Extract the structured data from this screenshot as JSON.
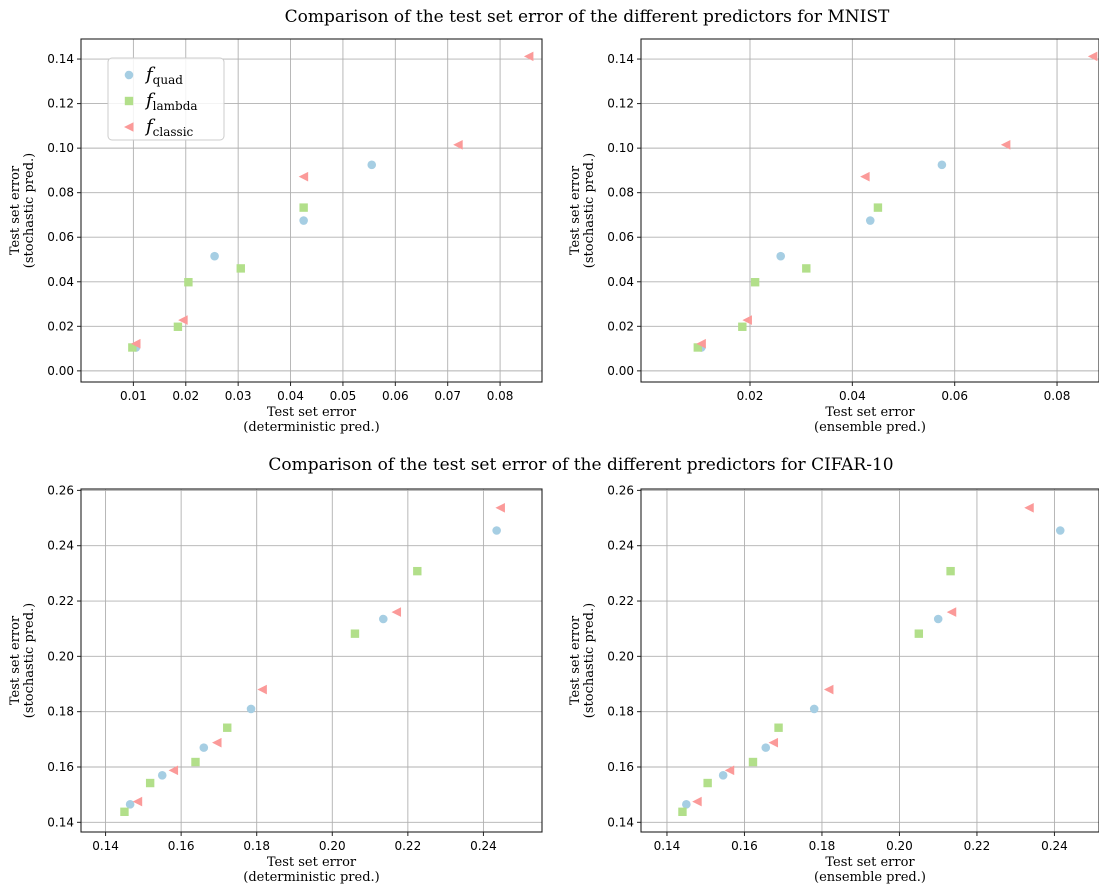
{
  "figure_titles": [
    "Comparison of the test set error of the different predictors for MNIST",
    "Comparison of the test set error of the different predictors for CIFAR-10"
  ],
  "legend": [
    {
      "base": "f",
      "sub": "quad",
      "color": "#a6cee3",
      "marker": "circle"
    },
    {
      "base": "f",
      "sub": "lambda",
      "color": "#b2df8a",
      "marker": "square"
    },
    {
      "base": "f",
      "sub": "classic",
      "color": "#fb9a99",
      "marker": "triangle-left"
    }
  ],
  "chart_data": [
    {
      "type": "scatter",
      "dataset": "MNIST",
      "xlabel": [
        "Test set error",
        "(deterministic pred.)"
      ],
      "ylabel": [
        "Test set error",
        "(stochastic pred.)"
      ],
      "xlim": [
        0.0,
        0.088
      ],
      "ylim": [
        -0.005,
        0.149
      ],
      "xticks": [
        0.01,
        0.02,
        0.03,
        0.04,
        0.05,
        0.06,
        0.07,
        0.08
      ],
      "xtick_labels": [
        "0.01",
        "0.02",
        "0.03",
        "0.04",
        "0.05",
        "0.06",
        "0.07",
        "0.08"
      ],
      "yticks": [
        0.0,
        0.02,
        0.04,
        0.06,
        0.08,
        0.1,
        0.12,
        0.14
      ],
      "ytick_labels": [
        "0.00",
        "0.02",
        "0.04",
        "0.06",
        "0.08",
        "0.10",
        "0.12",
        "0.14"
      ],
      "grid": true,
      "legend_position": "top-left",
      "series": [
        {
          "name": "f_quad",
          "x": [
            0.0105,
            0.0255,
            0.0425,
            0.0555
          ],
          "y": [
            0.0105,
            0.0515,
            0.0675,
            0.0925
          ]
        },
        {
          "name": "f_lambda",
          "x": [
            0.0098,
            0.0185,
            0.0205,
            0.0305,
            0.0425
          ],
          "y": [
            0.0105,
            0.0198,
            0.0398,
            0.046,
            0.0733
          ]
        },
        {
          "name": "f_classic",
          "x": [
            0.0105,
            0.0195,
            0.0425,
            0.072,
            0.0855
          ],
          "y": [
            0.0122,
            0.0228,
            0.0872,
            0.1015,
            0.1412
          ]
        }
      ]
    },
    {
      "type": "scatter",
      "dataset": "MNIST",
      "xlabel": [
        "Test set error",
        "(ensemble pred.)"
      ],
      "ylabel": [
        "Test set error",
        "(stochastic pred.)"
      ],
      "xlim": [
        -0.0013,
        0.0882
      ],
      "ylim": [
        -0.005,
        0.149
      ],
      "xticks": [
        0.02,
        0.04,
        0.06,
        0.08
      ],
      "xtick_labels": [
        "0.02",
        "0.04",
        "0.06",
        "0.08"
      ],
      "yticks": [
        0.0,
        0.02,
        0.04,
        0.06,
        0.08,
        0.1,
        0.12,
        0.14
      ],
      "ytick_labels": [
        "0.00",
        "0.02",
        "0.04",
        "0.06",
        "0.08",
        "0.10",
        "0.12",
        "0.14"
      ],
      "grid": true,
      "legend_position": "none",
      "series": [
        {
          "name": "f_quad",
          "x": [
            0.0105,
            0.026,
            0.0435,
            0.0575
          ],
          "y": [
            0.0105,
            0.0515,
            0.0675,
            0.0925
          ]
        },
        {
          "name": "f_lambda",
          "x": [
            0.0098,
            0.0185,
            0.021,
            0.031,
            0.045
          ],
          "y": [
            0.0105,
            0.0198,
            0.0398,
            0.046,
            0.0733
          ]
        },
        {
          "name": "f_classic",
          "x": [
            0.0105,
            0.0195,
            0.0425,
            0.07,
            0.087
          ],
          "y": [
            0.0122,
            0.0228,
            0.0872,
            0.1015,
            0.1412
          ]
        }
      ]
    },
    {
      "type": "scatter",
      "dataset": "CIFAR-10",
      "xlabel": [
        "Test set error",
        "(deterministic pred.)"
      ],
      "ylabel": [
        "Test set error",
        "(stochastic pred.)"
      ],
      "xlim": [
        0.1335,
        0.2555
      ],
      "ylim": [
        0.1365,
        0.2605
      ],
      "xticks": [
        0.14,
        0.16,
        0.18,
        0.2,
        0.22,
        0.24
      ],
      "xtick_labels": [
        "0.14",
        "0.16",
        "0.18",
        "0.20",
        "0.22",
        "0.24"
      ],
      "yticks": [
        0.14,
        0.16,
        0.18,
        0.2,
        0.22,
        0.24,
        0.26
      ],
      "ytick_labels": [
        "0.14",
        "0.16",
        "0.18",
        "0.20",
        "0.22",
        "0.24",
        "0.26"
      ],
      "grid": true,
      "legend_position": "none",
      "series": [
        {
          "name": "f_quad",
          "x": [
            0.1465,
            0.155,
            0.166,
            0.1785,
            0.2135,
            0.2435
          ],
          "y": [
            0.1465,
            0.157,
            0.167,
            0.181,
            0.2135,
            0.2455
          ]
        },
        {
          "name": "f_lambda",
          "x": [
            0.145,
            0.1518,
            0.1638,
            0.1722,
            0.206,
            0.2225
          ],
          "y": [
            0.1438,
            0.1542,
            0.1618,
            0.1742,
            0.2082,
            0.2308
          ]
        },
        {
          "name": "f_classic",
          "x": [
            0.1485,
            0.158,
            0.1695,
            0.1815,
            0.217,
            0.2445
          ],
          "y": [
            0.1475,
            0.1588,
            0.1688,
            0.188,
            0.216,
            0.2537
          ]
        }
      ]
    },
    {
      "type": "scatter",
      "dataset": "CIFAR-10",
      "xlabel": [
        "Test set error",
        "(ensemble pred.)"
      ],
      "ylabel": [
        "Test set error",
        "(stochastic pred.)"
      ],
      "xlim": [
        0.1333,
        0.2515
      ],
      "ylim": [
        0.1365,
        0.2605
      ],
      "xticks": [
        0.14,
        0.16,
        0.18,
        0.2,
        0.22,
        0.24
      ],
      "xtick_labels": [
        "0.14",
        "0.16",
        "0.18",
        "0.20",
        "0.22",
        "0.24"
      ],
      "yticks": [
        0.14,
        0.16,
        0.18,
        0.2,
        0.22,
        0.24,
        0.26
      ],
      "ytick_labels": [
        "0.14",
        "0.16",
        "0.18",
        "0.20",
        "0.22",
        "0.24",
        "0.26"
      ],
      "grid": true,
      "legend_position": "none",
      "series": [
        {
          "name": "f_quad",
          "x": [
            0.145,
            0.1545,
            0.1655,
            0.178,
            0.21,
            0.2415
          ],
          "y": [
            0.1465,
            0.157,
            0.167,
            0.181,
            0.2135,
            0.2455
          ]
        },
        {
          "name": "f_lambda",
          "x": [
            0.144,
            0.1505,
            0.1622,
            0.1688,
            0.205,
            0.2132
          ],
          "y": [
            0.1438,
            0.1542,
            0.1618,
            0.1742,
            0.2082,
            0.2308
          ]
        },
        {
          "name": "f_classic",
          "x": [
            0.1478,
            0.1562,
            0.1675,
            0.1818,
            0.2135,
            0.2335
          ],
          "y": [
            0.1475,
            0.1588,
            0.1688,
            0.188,
            0.216,
            0.2537
          ]
        }
      ]
    }
  ]
}
